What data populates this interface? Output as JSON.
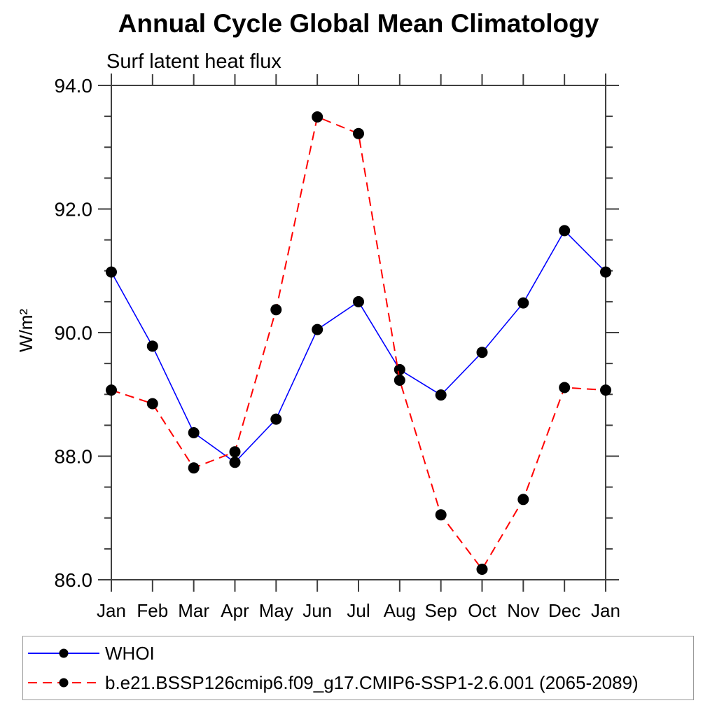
{
  "chart_data": {
    "type": "line",
    "title": "Annual Cycle Global Mean Climatology",
    "subtitle": "Surf latent heat flux",
    "xlabel": "",
    "ylabel": "W/m²",
    "categories": [
      "Jan",
      "Feb",
      "Mar",
      "Apr",
      "May",
      "Jun",
      "Jul",
      "Aug",
      "Sep",
      "Oct",
      "Nov",
      "Dec",
      "Jan"
    ],
    "ylim": [
      86.0,
      94.0
    ],
    "ytick_labels": [
      "86.0",
      "88.0",
      "90.0",
      "92.0",
      "94.0"
    ],
    "ytick_major": [
      86.0,
      88.0,
      90.0,
      92.0,
      94.0
    ],
    "ytick_minor_step": 0.5,
    "grid": false,
    "legend_position": "bottom-left",
    "series": [
      {
        "name": "WHOI",
        "color": "#0000ff",
        "line_style": "solid",
        "marker": "filled-circle",
        "marker_color": "#000000",
        "values": [
          90.98,
          89.78,
          88.38,
          87.9,
          88.6,
          90.05,
          90.5,
          89.4,
          88.99,
          89.68,
          90.48,
          91.65,
          90.98
        ]
      },
      {
        "name": "b.e21.BSSP126cmip6.f09_g17.CMIP6-SSP1-2.6.001 (2065-2089)",
        "color": "#ff0000",
        "line_style": "dashed",
        "marker": "filled-circle",
        "marker_color": "#000000",
        "values": [
          89.07,
          88.85,
          87.81,
          88.07,
          90.37,
          93.49,
          93.22,
          89.23,
          87.05,
          86.17,
          87.3,
          89.11,
          89.07
        ]
      }
    ]
  },
  "legend": {
    "entries": [
      {
        "label": "WHOI"
      },
      {
        "label": "b.e21.BSSP126cmip6.f09_g17.CMIP6-SSP1-2.6.001 (2065-2089)"
      }
    ]
  },
  "colors": {
    "axis": "#3f3f3f",
    "text": "#000000",
    "series1": "#0000ff",
    "series2": "#ff0000",
    "marker": "#000000"
  }
}
